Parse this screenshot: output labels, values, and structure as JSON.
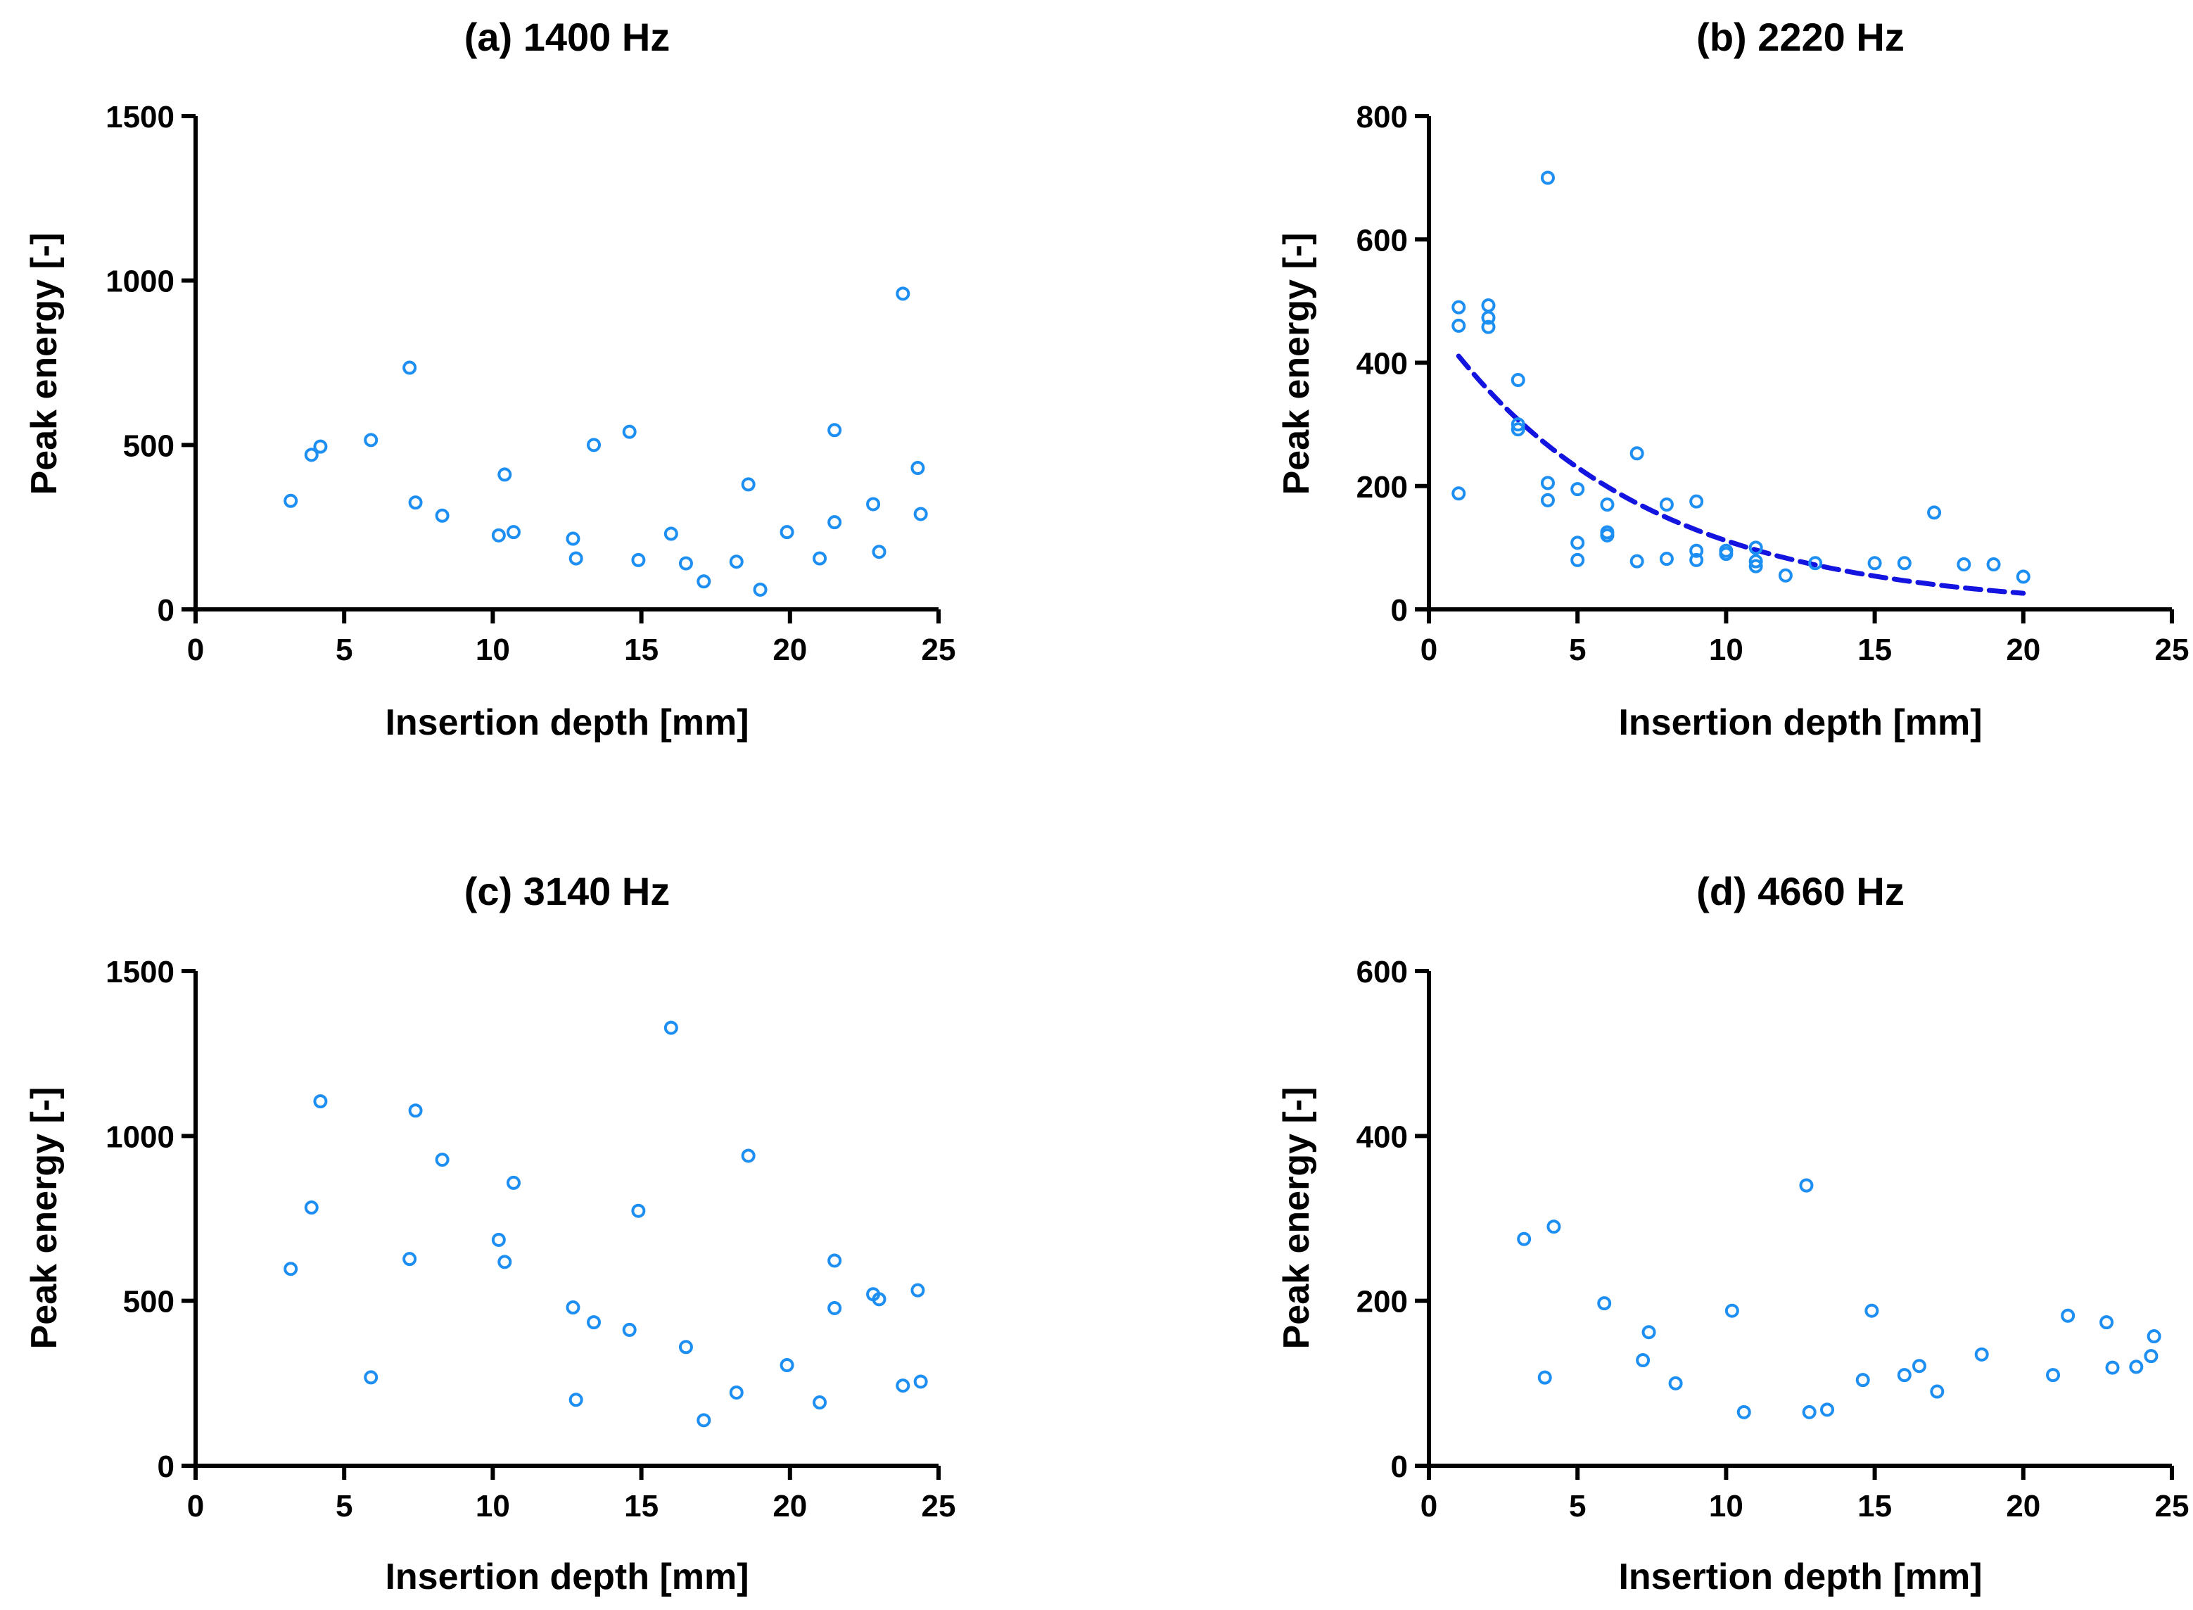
{
  "colors": {
    "marker": "#1E8FF2",
    "fit": "#1414E0",
    "axis": "#000000"
  },
  "chart_data": [
    {
      "type": "scatter",
      "title": "(a) 1400 Hz",
      "xlabel": "Insertion depth [mm]",
      "ylabel": "Peak energy [-]",
      "xlim": [
        0,
        25
      ],
      "ylim": [
        0,
        1500
      ],
      "xticks": [
        0,
        5,
        10,
        15,
        20,
        25
      ],
      "yticks": [
        0,
        500,
        1000,
        1500
      ],
      "xtick_labels": [
        "0",
        "5",
        "10",
        "15",
        "20",
        "25"
      ],
      "ytick_labels": [
        "0",
        "500",
        "1000",
        "1500"
      ],
      "points": [
        [
          3.2,
          330
        ],
        [
          3.9,
          470
        ],
        [
          4.2,
          495
        ],
        [
          5.9,
          515
        ],
        [
          7.2,
          735
        ],
        [
          7.4,
          325
        ],
        [
          8.3,
          285
        ],
        [
          10.2,
          225
        ],
        [
          10.4,
          410
        ],
        [
          10.7,
          235
        ],
        [
          12.7,
          215
        ],
        [
          12.8,
          155
        ],
        [
          13.4,
          500
        ],
        [
          14.6,
          540
        ],
        [
          14.9,
          150
        ],
        [
          16.0,
          230
        ],
        [
          16.5,
          140
        ],
        [
          17.1,
          85
        ],
        [
          18.2,
          145
        ],
        [
          18.6,
          380
        ],
        [
          19.0,
          60
        ],
        [
          19.9,
          235
        ],
        [
          21.0,
          155
        ],
        [
          21.5,
          545
        ],
        [
          21.5,
          265
        ],
        [
          22.8,
          320
        ],
        [
          23.0,
          175
        ],
        [
          23.8,
          960
        ],
        [
          24.3,
          430
        ],
        [
          24.4,
          290
        ]
      ],
      "fit": null
    },
    {
      "type": "scatter",
      "title": "(b) 2220 Hz",
      "xlabel": "Insertion depth [mm]",
      "ylabel": "Peak energy [-]",
      "xlim": [
        0,
        25
      ],
      "ylim": [
        0,
        800
      ],
      "xticks": [
        0,
        5,
        10,
        15,
        20,
        25
      ],
      "yticks": [
        0,
        200,
        400,
        600,
        800
      ],
      "xtick_labels": [
        "0",
        "5",
        "10",
        "15",
        "20",
        "25"
      ],
      "ytick_labels": [
        "0",
        "200",
        "400",
        "600",
        "800"
      ],
      "points": [
        [
          1,
          490
        ],
        [
          1,
          460
        ],
        [
          1,
          188
        ],
        [
          2,
          493
        ],
        [
          2,
          473
        ],
        [
          2,
          458
        ],
        [
          3,
          372
        ],
        [
          3,
          300
        ],
        [
          3,
          292
        ],
        [
          4,
          700
        ],
        [
          4,
          205
        ],
        [
          4,
          177
        ],
        [
          5,
          195
        ],
        [
          5,
          108
        ],
        [
          5,
          80
        ],
        [
          6,
          170
        ],
        [
          6,
          125
        ],
        [
          6,
          120
        ],
        [
          7,
          253
        ],
        [
          7,
          78
        ],
        [
          8,
          170
        ],
        [
          8,
          82
        ],
        [
          9,
          175
        ],
        [
          9,
          95
        ],
        [
          9,
          80
        ],
        [
          10,
          95
        ],
        [
          10,
          90
        ],
        [
          11,
          100
        ],
        [
          11,
          78
        ],
        [
          11,
          70
        ],
        [
          12,
          55
        ],
        [
          13,
          75
        ],
        [
          15,
          75
        ],
        [
          16,
          75
        ],
        [
          17,
          157
        ],
        [
          18,
          73
        ],
        [
          19,
          73
        ],
        [
          20,
          53
        ]
      ],
      "fit": {
        "type": "exponential",
        "a": 475,
        "b": 0.145,
        "x_range": [
          1,
          20
        ]
      }
    },
    {
      "type": "scatter",
      "title": "(c) 3140 Hz",
      "xlabel": "Insertion depth [mm]",
      "ylabel": "Peak energy [-]",
      "xlim": [
        0,
        25
      ],
      "ylim": [
        0,
        1500
      ],
      "xticks": [
        0,
        5,
        10,
        15,
        20,
        25
      ],
      "yticks": [
        0,
        500,
        1000,
        1500
      ],
      "xtick_labels": [
        "0",
        "5",
        "10",
        "15",
        "20",
        "25"
      ],
      "ytick_labels": [
        "0",
        "500",
        "1000",
        "1500"
      ],
      "points": [
        [
          3.2,
          597
        ],
        [
          3.9,
          783
        ],
        [
          4.2,
          1105
        ],
        [
          5.9,
          268
        ],
        [
          7.2,
          627
        ],
        [
          7.4,
          1077
        ],
        [
          8.3,
          928
        ],
        [
          10.2,
          685
        ],
        [
          10.4,
          618
        ],
        [
          10.7,
          858
        ],
        [
          12.7,
          480
        ],
        [
          12.8,
          200
        ],
        [
          13.4,
          435
        ],
        [
          14.6,
          412
        ],
        [
          14.9,
          773
        ],
        [
          16.0,
          1328
        ],
        [
          16.5,
          360
        ],
        [
          17.1,
          138
        ],
        [
          18.2,
          222
        ],
        [
          18.6,
          940
        ],
        [
          19.9,
          305
        ],
        [
          21.0,
          192
        ],
        [
          21.5,
          622
        ],
        [
          21.5,
          478
        ],
        [
          22.8,
          520
        ],
        [
          23.0,
          505
        ],
        [
          23.8,
          243
        ],
        [
          24.3,
          532
        ],
        [
          24.4,
          255
        ]
      ],
      "fit": null
    },
    {
      "type": "scatter",
      "title": "(d) 4660 Hz",
      "xlabel": "Insertion depth [mm]",
      "ylabel": "Peak energy [-]",
      "xlim": [
        0,
        25
      ],
      "ylim": [
        0,
        600
      ],
      "xticks": [
        0,
        5,
        10,
        15,
        20,
        25
      ],
      "yticks": [
        0,
        200,
        400,
        600
      ],
      "xtick_labels": [
        "0",
        "5",
        "10",
        "15",
        "20",
        "25"
      ],
      "ytick_labels": [
        "0",
        "200",
        "400",
        "600"
      ],
      "points": [
        [
          3.2,
          275
        ],
        [
          3.9,
          107
        ],
        [
          4.2,
          290
        ],
        [
          5.9,
          197
        ],
        [
          7.2,
          128
        ],
        [
          7.4,
          162
        ],
        [
          8.3,
          100
        ],
        [
          10.2,
          188
        ],
        [
          10.6,
          65
        ],
        [
          12.7,
          340
        ],
        [
          12.8,
          65
        ],
        [
          13.4,
          68
        ],
        [
          14.6,
          104
        ],
        [
          14.9,
          188
        ],
        [
          16.0,
          110
        ],
        [
          16.5,
          121
        ],
        [
          17.1,
          90
        ],
        [
          18.6,
          135
        ],
        [
          21.0,
          110
        ],
        [
          21.5,
          182
        ],
        [
          22.8,
          174
        ],
        [
          23.0,
          119
        ],
        [
          23.8,
          120
        ],
        [
          24.3,
          133
        ],
        [
          24.4,
          157
        ]
      ],
      "fit": null
    }
  ]
}
